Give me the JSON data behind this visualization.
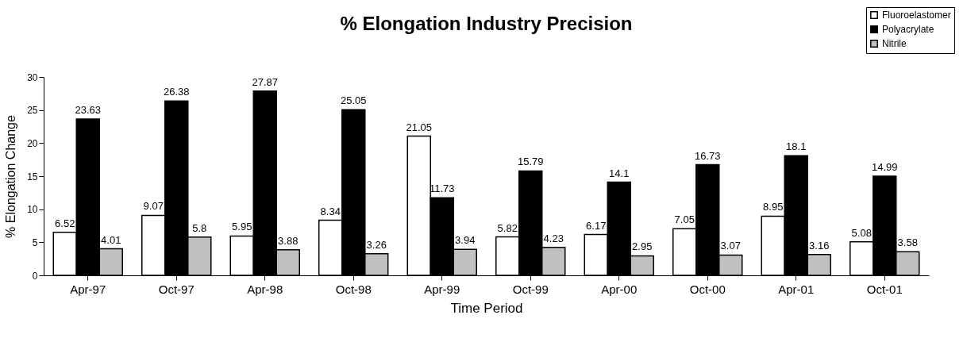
{
  "chart_data": {
    "type": "bar",
    "title": "% Elongation Industry Precision",
    "xlabel": "Time Period",
    "ylabel": "% Elongation Change",
    "categories": [
      "Apr-97",
      "Oct-97",
      "Apr-98",
      "Oct-98",
      "Apr-99",
      "Oct-99",
      "Apr-00",
      "Oct-00",
      "Apr-01",
      "Oct-01"
    ],
    "series": [
      {
        "name": "Fluoroelastomer",
        "color": "#ffffff",
        "values": [
          6.52,
          9.07,
          5.95,
          8.34,
          21.05,
          5.82,
          6.17,
          7.05,
          8.95,
          5.08
        ]
      },
      {
        "name": "Polyacrylate",
        "color": "#000000",
        "values": [
          23.63,
          26.38,
          27.87,
          25.05,
          11.73,
          15.79,
          14.1,
          16.73,
          18.1,
          14.99
        ]
      },
      {
        "name": "Nitrile",
        "color": "#c0c0c0",
        "values": [
          4.01,
          5.8,
          3.88,
          3.26,
          3.94,
          4.23,
          2.95,
          3.07,
          3.16,
          3.58
        ]
      }
    ],
    "ylim": [
      0,
      30
    ],
    "yticks": [
      0,
      5,
      10,
      15,
      20,
      25,
      30
    ],
    "grid": false,
    "legend": "top right",
    "data_labels": true
  }
}
